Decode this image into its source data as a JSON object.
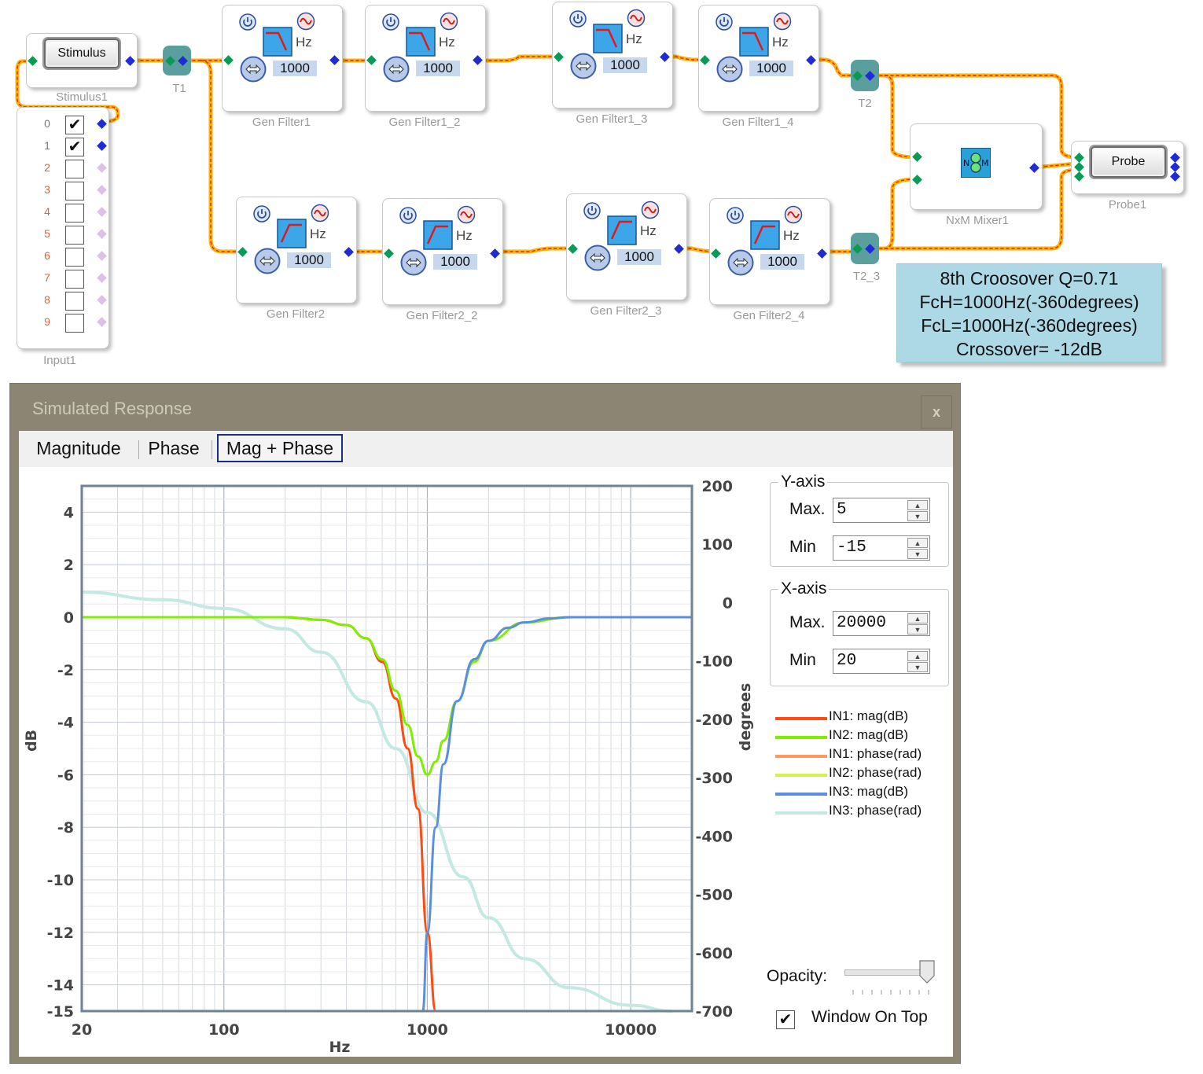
{
  "schematic": {
    "stimulus": {
      "button": "Stimulus",
      "label": "Stimulus1"
    },
    "tee1": {
      "label": "T1"
    },
    "tee2": {
      "label": "T2"
    },
    "tee3": {
      "label": "T2_3"
    },
    "input": {
      "label": "Input1",
      "channels": [
        {
          "num": "0",
          "checked": "✔"
        },
        {
          "num": "1",
          "checked": "✔"
        },
        {
          "num": "2",
          "checked": ""
        },
        {
          "num": "3",
          "checked": ""
        },
        {
          "num": "4",
          "checked": ""
        },
        {
          "num": "5",
          "checked": ""
        },
        {
          "num": "6",
          "checked": ""
        },
        {
          "num": "7",
          "checked": ""
        },
        {
          "num": "8",
          "checked": ""
        },
        {
          "num": "9",
          "checked": ""
        }
      ]
    },
    "filters": [
      {
        "label": "Gen Filter1",
        "freq": "1000",
        "unit": "Hz",
        "type": "lowpass"
      },
      {
        "label": "Gen Filter1_2",
        "freq": "1000",
        "unit": "Hz",
        "type": "lowpass"
      },
      {
        "label": "Gen Filter1_3",
        "freq": "1000",
        "unit": "Hz",
        "type": "lowpass"
      },
      {
        "label": "Gen Filter1_4",
        "freq": "1000",
        "unit": "Hz",
        "type": "lowpass"
      },
      {
        "label": "Gen Filter2",
        "freq": "1000",
        "unit": "Hz",
        "type": "highpass"
      },
      {
        "label": "Gen Filter2_2",
        "freq": "1000",
        "unit": "Hz",
        "type": "highpass"
      },
      {
        "label": "Gen Filter2_3",
        "freq": "1000",
        "unit": "Hz",
        "type": "highpass"
      },
      {
        "label": "Gen Filter2_4",
        "freq": "1000",
        "unit": "Hz",
        "type": "highpass"
      }
    ],
    "mixer": {
      "label": "NxM Mixer1",
      "icon": "mixer-icon"
    },
    "probe": {
      "button": "Probe",
      "label": "Probe1"
    },
    "note": {
      "line1": "8th Croosover Q=0.71",
      "line2": "FcH=1000Hz(-360degrees)",
      "line3": "FcL=1000Hz(-360degrees)",
      "line4": "Crossover= -12dB"
    }
  },
  "window": {
    "title": "Simulated Response",
    "close": "x",
    "tabs": [
      "Magnitude",
      "Phase",
      "Mag + Phase"
    ],
    "active_tab": "Mag + Phase",
    "y_axis_group": "Y-axis",
    "x_axis_group": "X-axis",
    "y_max_label": "Max.",
    "y_max": "5",
    "y_min_label": "Min",
    "y_min": "-15",
    "x_max_label": "Max.",
    "x_max": "20000",
    "x_min_label": "Min",
    "x_min": "20",
    "opacity_label": "Opacity:",
    "opacity": 1.0,
    "window_on_top_label": "Window On Top",
    "window_on_top": "✔"
  },
  "chart_data": {
    "type": "line",
    "xlabel": "Hz",
    "ylabel": "dB",
    "y2label": "degrees",
    "xscale": "log",
    "xlim": [
      20,
      20000
    ],
    "ylim": [
      -15,
      5
    ],
    "y2lim": [
      -700,
      200
    ],
    "xticks": [
      "20",
      "100",
      "1000",
      "10000"
    ],
    "yticks": [
      "4",
      "2",
      "0",
      "-2",
      "-4",
      "-6",
      "-8",
      "-10",
      "-12",
      "-14",
      "-15"
    ],
    "y2ticks": [
      "200",
      "100",
      "0",
      "-100",
      "-200",
      "-300",
      "-400",
      "-500",
      "-600",
      "-700"
    ],
    "grid": true,
    "legend_position": "right",
    "series": [
      {
        "name": "IN1: mag(dB)",
        "color": "#ff4a10",
        "axis": "left",
        "x": [
          20,
          100,
          200,
          300,
          400,
          500,
          600,
          700,
          800,
          900,
          1000,
          1100
        ],
        "y": [
          0,
          0,
          0,
          -0.1,
          -0.3,
          -0.8,
          -1.7,
          -3.1,
          -5.0,
          -7.3,
          -12,
          -15
        ]
      },
      {
        "name": "IN2: mag(dB)",
        "color": "#7df000",
        "axis": "left",
        "x": [
          20,
          100,
          200,
          300,
          400,
          500,
          600,
          700,
          800,
          900,
          1000,
          1100,
          1200,
          1400,
          1700,
          2000,
          3000,
          5000,
          20000
        ],
        "y": [
          0,
          0,
          0,
          -0.1,
          -0.3,
          -0.8,
          -1.6,
          -2.8,
          -4.1,
          -5.3,
          -6,
          -5.5,
          -4.7,
          -3.2,
          -1.7,
          -0.9,
          -0.2,
          0,
          0
        ]
      },
      {
        "name": "IN1: phase(rad)",
        "color": "#ff9a5c",
        "axis": "right",
        "x": [],
        "y": []
      },
      {
        "name": "IN2: phase(rad)",
        "color": "#d8f050",
        "axis": "right",
        "x": [],
        "y": []
      },
      {
        "name": "IN3: mag(dB)",
        "color": "#5c8ee0",
        "axis": "left",
        "x": [
          950,
          1000,
          1100,
          1200,
          1400,
          1700,
          2000,
          2500,
          3000,
          4000,
          5000,
          10000,
          20000
        ],
        "y": [
          -15,
          -12,
          -8,
          -5.6,
          -3.2,
          -1.6,
          -0.9,
          -0.4,
          -0.2,
          -0.05,
          0,
          0,
          0
        ]
      },
      {
        "name": "IN3: phase(rad)",
        "color": "#c4e8e2",
        "axis": "right",
        "x": [
          20,
          50,
          100,
          200,
          300,
          500,
          700,
          1000,
          1500,
          2000,
          3000,
          5000,
          10000,
          16000
        ],
        "y": [
          18,
          5,
          -10,
          -45,
          -85,
          -170,
          -250,
          -360,
          -470,
          -540,
          -610,
          -660,
          -690,
          -700
        ]
      }
    ]
  }
}
